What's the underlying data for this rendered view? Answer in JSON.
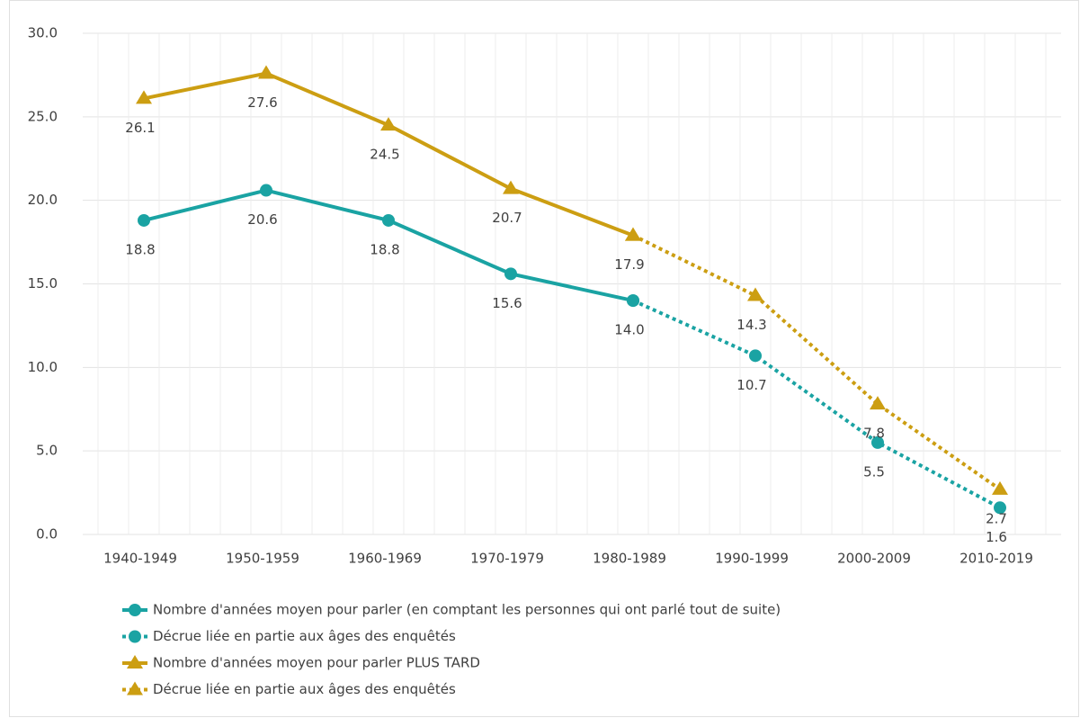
{
  "chart_data": {
    "type": "line",
    "categories": [
      "1940-1949",
      "1950-1959",
      "1960-1969",
      "1970-1979",
      "1980-1989",
      "1990-1999",
      "2000-2009",
      "2010-2019"
    ],
    "ylim": [
      0,
      30
    ],
    "yticks": [
      {
        "value": 0,
        "label": "0.0"
      },
      {
        "value": 5,
        "label": "5.0"
      },
      {
        "value": 10,
        "label": "10.0"
      },
      {
        "value": 15,
        "label": "15.0"
      },
      {
        "value": 20,
        "label": "20.0"
      },
      {
        "value": 25,
        "label": "25.0"
      },
      {
        "value": 30,
        "label": "30.0"
      }
    ],
    "grid": true,
    "series": [
      {
        "name": "Nombre d'années moyen pour parler (en comptant les personnes qui ont parlé tout de suite)",
        "color": "#1aa3a3",
        "line_style": "solid",
        "marker": "circle",
        "values": [
          18.8,
          20.6,
          18.8,
          15.6,
          14,
          null,
          null,
          null
        ],
        "value_labels": [
          "18.8",
          "20.6",
          "18.8",
          "15.6",
          "14.0",
          null,
          null,
          null
        ]
      },
      {
        "name": "Décrue liée en partie aux âges des enquêtés",
        "color": "#1aa3a3",
        "line_style": "dotted",
        "marker": "circle",
        "values": [
          null,
          null,
          null,
          null,
          14,
          10.7,
          5.5,
          1.6
        ],
        "value_labels": [
          null,
          null,
          null,
          null,
          null,
          "10.7",
          "5.5",
          "1.6"
        ]
      },
      {
        "name": "Nombre d'années moyen pour parler PLUS TARD",
        "color": "#cc9e12",
        "line_style": "solid",
        "marker": "triangle",
        "values": [
          26.1,
          27.6,
          24.5,
          20.7,
          17.9,
          null,
          null,
          null
        ],
        "value_labels": [
          "26.1",
          "27.6",
          "24.5",
          "20.7",
          "17.9",
          null,
          null,
          null
        ]
      },
      {
        "name": "Décrue liée en partie aux âges des enquêtés",
        "color": "#cc9e12",
        "line_style": "dotted",
        "marker": "triangle",
        "values": [
          null,
          null,
          null,
          null,
          17.9,
          14.3,
          7.8,
          2.7
        ],
        "value_labels": [
          null,
          null,
          null,
          null,
          null,
          "14.3",
          "7.8",
          "2.7"
        ]
      }
    ]
  }
}
